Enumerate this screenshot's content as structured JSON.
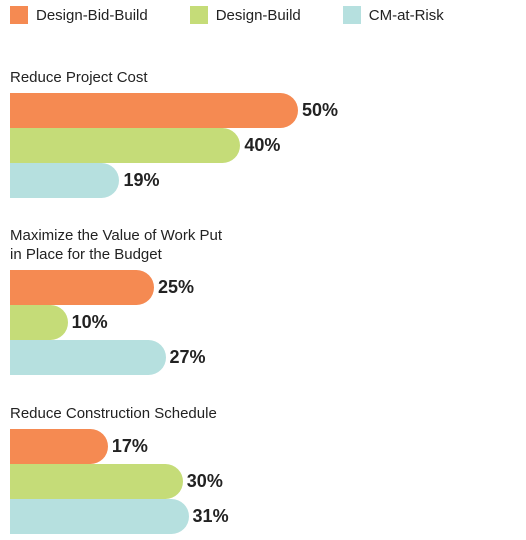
{
  "chart_data": {
    "type": "bar",
    "categories": [
      "Reduce Project Cost",
      "Maximize the Value of Work Put in Place for the Budget",
      "Reduce Construction Schedule"
    ],
    "series": [
      {
        "name": "Design-Bid-Build",
        "color": "#f58a52",
        "values": [
          50,
          25,
          17
        ],
        "value_labels": [
          "50%",
          "25%",
          "17%"
        ]
      },
      {
        "name": "Design-Build",
        "color": "#c5dc78",
        "values": [
          40,
          10,
          30
        ],
        "value_labels": [
          "40%",
          "10%",
          "30%"
        ]
      },
      {
        "name": "CM-at-Risk",
        "color": "#b6e0df",
        "values": [
          19,
          27,
          31
        ],
        "value_labels": [
          "19%",
          "27%",
          "31%"
        ]
      }
    ]
  }
}
